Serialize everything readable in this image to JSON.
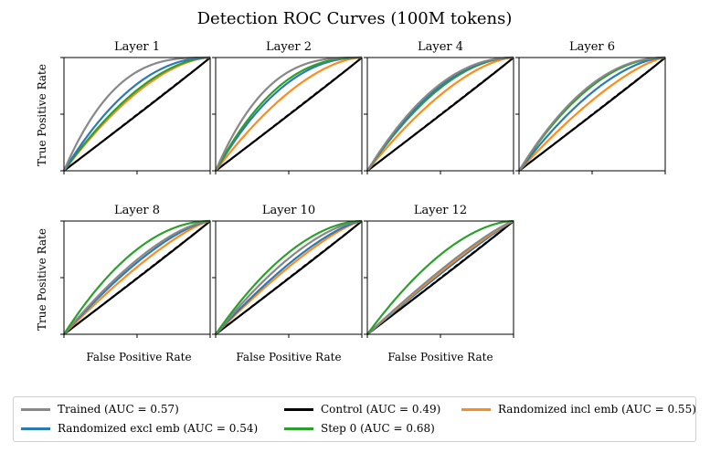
{
  "figure": {
    "title": "Detection ROC Curves (100M tokens)",
    "xlabel": "False Positive Rate",
    "ylabel": "True Positive Rate"
  },
  "legend": [
    {
      "label": "Trained (AUC = 0.57)",
      "color": "#888888"
    },
    {
      "label": "Control (AUC = 0.49)",
      "color": "#000000"
    },
    {
      "label": "Randomized incl emb (AUC = 0.55)",
      "color": "#ff8c1a"
    },
    {
      "label": "Randomized excl emb (AUC = 0.54)",
      "color": "#2a7ab8"
    },
    {
      "label": "Step 0 (AUC = 0.68)",
      "color": "#2ca02c"
    }
  ],
  "chart_data": [
    {
      "type": "line",
      "title": "Layer 1",
      "xlim": [
        0,
        1
      ],
      "ylim": [
        0,
        1
      ],
      "diagonal": true,
      "series": [
        {
          "name": "Control (AUC = 0.49)",
          "color": "#000000",
          "shape": 0.98
        },
        {
          "name": "Randomized incl emb (AUC = 0.55)",
          "color": "#ff8c1a",
          "shape": 1.7
        },
        {
          "name": "Step 0 (AUC = 0.68)",
          "color": "#2ca02c",
          "shape": 1.8
        },
        {
          "name": "Randomized excl emb (AUC = 0.54)",
          "color": "#2a7ab8",
          "shape": 2.1
        },
        {
          "name": "Trained (AUC = 0.57)",
          "color": "#888888",
          "shape": 3.0
        }
      ]
    },
    {
      "type": "line",
      "title": "Layer 2",
      "xlim": [
        0,
        1
      ],
      "ylim": [
        0,
        1
      ],
      "diagonal": true,
      "series": [
        {
          "name": "Control (AUC = 0.49)",
          "color": "#000000",
          "shape": 0.98
        },
        {
          "name": "Randomized incl emb (AUC = 0.55)",
          "color": "#ff8c1a",
          "shape": 1.7
        },
        {
          "name": "Randomized excl emb (AUC = 0.54)",
          "color": "#2a7ab8",
          "shape": 2.2
        },
        {
          "name": "Step 0 (AUC = 0.68)",
          "color": "#2ca02c",
          "shape": 2.4
        },
        {
          "name": "Trained (AUC = 0.57)",
          "color": "#888888",
          "shape": 3.0
        }
      ]
    },
    {
      "type": "line",
      "title": "Layer 4",
      "xlim": [
        0,
        1
      ],
      "ylim": [
        0,
        1
      ],
      "diagonal": true,
      "series": [
        {
          "name": "Control (AUC = 0.49)",
          "color": "#000000",
          "shape": 0.98
        },
        {
          "name": "Randomized incl emb (AUC = 0.55)",
          "color": "#ff8c1a",
          "shape": 1.6
        },
        {
          "name": "Step 0 (AUC = 0.68)",
          "color": "#2ca02c",
          "shape": 1.9
        },
        {
          "name": "Randomized excl emb (AUC = 0.54)",
          "color": "#2a7ab8",
          "shape": 2.0
        },
        {
          "name": "Trained (AUC = 0.57)",
          "color": "#888888",
          "shape": 2.1
        }
      ]
    },
    {
      "type": "line",
      "title": "Layer 6",
      "xlim": [
        0,
        1
      ],
      "ylim": [
        0,
        1
      ],
      "diagonal": true,
      "series": [
        {
          "name": "Control (AUC = 0.49)",
          "color": "#000000",
          "shape": 0.98
        },
        {
          "name": "Randomized incl emb (AUC = 0.55)",
          "color": "#ff8c1a",
          "shape": 1.4
        },
        {
          "name": "Randomized excl emb (AUC = 0.54)",
          "color": "#2a7ab8",
          "shape": 1.7
        },
        {
          "name": "Step 0 (AUC = 0.68)",
          "color": "#2ca02c",
          "shape": 2.0
        },
        {
          "name": "Trained (AUC = 0.57)",
          "color": "#888888",
          "shape": 2.1
        }
      ]
    },
    {
      "type": "line",
      "title": "Layer 8",
      "xlim": [
        0,
        1
      ],
      "ylim": [
        0,
        1
      ],
      "diagonal": true,
      "series": [
        {
          "name": "Control (AUC = 0.49)",
          "color": "#000000",
          "shape": 0.98
        },
        {
          "name": "Randomized incl emb (AUC = 0.55)",
          "color": "#ff8c1a",
          "shape": 1.3
        },
        {
          "name": "Randomized excl emb (AUC = 0.54)",
          "color": "#2a7ab8",
          "shape": 1.45
        },
        {
          "name": "Trained (AUC = 0.57)",
          "color": "#888888",
          "shape": 1.55
        },
        {
          "name": "Step 0 (AUC = 0.68)",
          "color": "#2ca02c",
          "shape": 2.0
        }
      ]
    },
    {
      "type": "line",
      "title": "Layer 10",
      "xlim": [
        0,
        1
      ],
      "ylim": [
        0,
        1
      ],
      "diagonal": true,
      "series": [
        {
          "name": "Control (AUC = 0.49)",
          "color": "#000000",
          "shape": 0.98
        },
        {
          "name": "Randomized incl emb (AUC = 0.55)",
          "color": "#ff8c1a",
          "shape": 1.3
        },
        {
          "name": "Randomized excl emb (AUC = 0.54)",
          "color": "#2a7ab8",
          "shape": 1.4
        },
        {
          "name": "Trained (AUC = 0.57)",
          "color": "#888888",
          "shape": 1.6
        },
        {
          "name": "Step 0 (AUC = 0.68)",
          "color": "#2ca02c",
          "shape": 1.85
        }
      ]
    },
    {
      "type": "line",
      "title": "Layer 12",
      "xlim": [
        0,
        1
      ],
      "ylim": [
        0,
        1
      ],
      "diagonal": true,
      "series": [
        {
          "name": "Control (AUC = 0.49)",
          "color": "#000000",
          "shape": 0.98
        },
        {
          "name": "Randomized excl emb (AUC = 0.54)",
          "color": "#2a7ab8",
          "shape": 1.1
        },
        {
          "name": "Randomized incl emb (AUC = 0.55)",
          "color": "#ff8c1a",
          "shape": 1.15
        },
        {
          "name": "Trained (AUC = 0.57)",
          "color": "#888888",
          "shape": 1.2
        },
        {
          "name": "Step 0 (AUC = 0.68)",
          "color": "#2ca02c",
          "shape": 1.75
        }
      ]
    }
  ]
}
